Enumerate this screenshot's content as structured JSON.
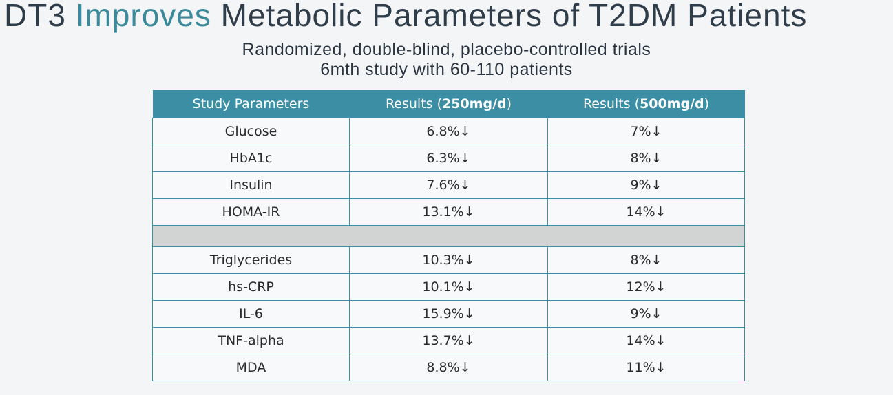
{
  "title": {
    "part1": "DT3 ",
    "accent": "Improves",
    "part2": " Metabolic Parameters of T2DM Patients"
  },
  "subtitle": {
    "line1": "Randomized, double-blind, placebo-controlled trials",
    "line2": "6mth study with 60-110 patients"
  },
  "table": {
    "headers": {
      "col1": "Study Parameters",
      "col2_prefix": "Results (",
      "col2_bold": "250mg/d",
      "col2_suffix": ")",
      "col3_prefix": "Results (",
      "col3_bold": "500mg/d",
      "col3_suffix": ")"
    },
    "group1": [
      {
        "param": "Glucose",
        "r250": "6.8%↓",
        "r500": "7%↓"
      },
      {
        "param": "HbA1c",
        "r250": "6.3%↓",
        "r500": "8%↓"
      },
      {
        "param": "Insulin",
        "r250": "7.6%↓",
        "r500": "9%↓"
      },
      {
        "param": "HOMA-IR",
        "r250": "13.1%↓",
        "r500": "14%↓"
      }
    ],
    "group2": [
      {
        "param": "Triglycerides",
        "r250": "10.3%↓",
        "r500": "8%↓"
      },
      {
        "param": "hs-CRP",
        "r250": "10.1%↓",
        "r500": "12%↓"
      },
      {
        "param": "IL-6",
        "r250": "15.9%↓",
        "r500": "9%↓"
      },
      {
        "param": "TNF-alpha",
        "r250": "13.7%↓",
        "r500": "14%↓"
      },
      {
        "param": "MDA",
        "r250": "8.8%↓",
        "r500": "11%↓"
      }
    ]
  },
  "colors": {
    "header_bg": "#3b8ea3",
    "title_accent": "#3b8a9b",
    "separator": "#d2d3d3"
  }
}
